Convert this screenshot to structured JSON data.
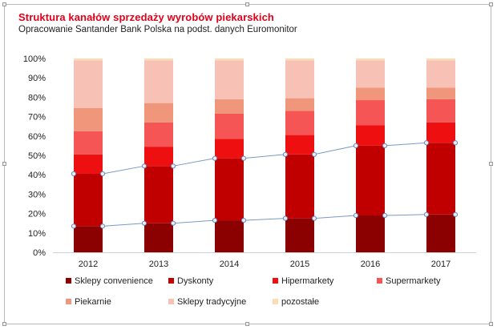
{
  "header": {
    "title": "Struktura kanałów sprzedaży wyrobów piekarskich",
    "subtitle": "Opracowanie Santander Bank Polska na podst. danych Euromonitor"
  },
  "chart_data": {
    "type": "bar",
    "stacked": true,
    "percent": true,
    "title": "Struktura kanałów sprzedaży wyrobów piekarskich",
    "subtitle": "Opracowanie Santander Bank Polska na podst. danych Euromonitor",
    "xlabel": "",
    "ylabel": "",
    "ylim": [
      0,
      100
    ],
    "yticks": [
      "0%",
      "10%",
      "20%",
      "30%",
      "40%",
      "50%",
      "60%",
      "70%",
      "80%",
      "90%",
      "100%"
    ],
    "grid": false,
    "legend_position": "bottom",
    "categories": [
      "2012",
      "2013",
      "2014",
      "2015",
      "2016",
      "2017"
    ],
    "series": [
      {
        "name": "Sklepy convenience",
        "color": "#8b0000",
        "values": [
          13.5,
          15,
          16.5,
          17.5,
          19,
          19.5
        ]
      },
      {
        "name": "Dyskonty",
        "color": "#c00000",
        "values": [
          27,
          29.5,
          32,
          33,
          36,
          37
        ]
      },
      {
        "name": "Hipermarkety",
        "color": "#ee1010",
        "values": [
          10,
          10,
          10,
          10,
          10.5,
          10.5
        ]
      },
      {
        "name": "Supermarkety",
        "color": "#f55555",
        "values": [
          12,
          12.5,
          13,
          12.5,
          13,
          12
        ]
      },
      {
        "name": "Piekarnie",
        "color": "#f0967a",
        "values": [
          12,
          10,
          7.5,
          6.5,
          6.5,
          6
        ]
      },
      {
        "name": "Sklepy tradycyjne",
        "color": "#f7c2b5",
        "values": [
          24.5,
          22,
          20,
          19.5,
          14,
          14
        ]
      },
      {
        "name": "pozostałe",
        "color": "#fbdcb5",
        "values": [
          1,
          1,
          1,
          1,
          1,
          1
        ]
      }
    ]
  }
}
